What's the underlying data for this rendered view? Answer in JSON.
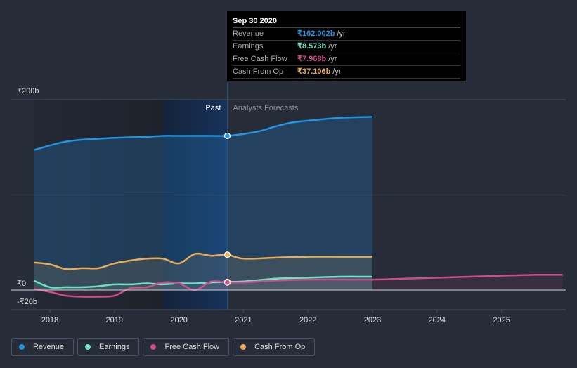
{
  "tooltip": {
    "date": "Sep 30 2020",
    "rows": [
      {
        "label": "Revenue",
        "value": "162.002b",
        "unit": "/yr",
        "color": "#2394df"
      },
      {
        "label": "Earnings",
        "value": "8.573b",
        "unit": "/yr",
        "color": "#6ee0c8"
      },
      {
        "label": "Free Cash Flow",
        "value": "7.968b",
        "unit": "/yr",
        "color": "#cb4d8c"
      },
      {
        "label": "Cash From Op",
        "value": "37.106b",
        "unit": "/yr",
        "color": "#e8ad5a"
      }
    ]
  },
  "legend": [
    {
      "label": "Revenue",
      "color": "#2394df"
    },
    {
      "label": "Earnings",
      "color": "#6ee0c8"
    },
    {
      "label": "Free Cash Flow",
      "color": "#cb4d8c"
    },
    {
      "label": "Cash From Op",
      "color": "#e8ad5a"
    }
  ],
  "chart_data": {
    "type": "line",
    "title": "",
    "xlabel": "",
    "ylabel": "",
    "currency_symbol": "₹",
    "y_ticks": [
      {
        "value": 200,
        "label": "₹200b"
      },
      {
        "value": 0,
        "label": "₹0"
      },
      {
        "value": -20,
        "label": "-₹20b"
      }
    ],
    "x_ticks": [
      "2018",
      "2019",
      "2020",
      "2021",
      "2022",
      "2023",
      "2024",
      "2025"
    ],
    "xlim": [
      2017.5,
      2025.95
    ],
    "ylim": [
      -20,
      200
    ],
    "grid": true,
    "past_label": "Past",
    "forecast_label": "Analysts Forecasts",
    "present_date": 2020.75,
    "highlight_range": [
      2019.75,
      2020.75
    ],
    "series": [
      {
        "name": "Revenue",
        "color": "#2394df",
        "x": [
          2017.75,
          2018.0,
          2018.25,
          2018.5,
          2018.75,
          2019.0,
          2019.5,
          2019.75,
          2020.0,
          2020.25,
          2020.5,
          2020.75,
          2021.0,
          2021.25,
          2021.5,
          2021.75,
          2022.0,
          2022.5,
          2023.0
        ],
        "y": [
          147,
          152,
          156,
          158,
          159,
          160,
          161,
          162,
          162,
          162,
          162,
          162,
          164,
          167,
          172,
          176,
          178,
          181,
          182
        ]
      },
      {
        "name": "Earnings",
        "color": "#6ee0c8",
        "x": [
          2017.75,
          2018.0,
          2018.25,
          2018.5,
          2018.75,
          2019.0,
          2019.25,
          2019.5,
          2019.75,
          2020.0,
          2020.25,
          2020.5,
          2020.75,
          2021.0,
          2021.5,
          2022.0,
          2022.5,
          2023.0
        ],
        "y": [
          10,
          3,
          3,
          3,
          4,
          6,
          6,
          7,
          6,
          7,
          7,
          8,
          8.6,
          9,
          12,
          13,
          14,
          14
        ]
      },
      {
        "name": "Free Cash Flow",
        "color": "#cb4d8c",
        "x": [
          2017.75,
          2018.0,
          2018.25,
          2018.5,
          2018.75,
          2019.0,
          2019.25,
          2019.5,
          2019.75,
          2020.0,
          2020.25,
          2020.5,
          2020.75,
          2021.0,
          2021.5,
          2022.0,
          2022.5,
          2023.0,
          2023.5,
          2024.0,
          2024.5,
          2025.0,
          2025.5,
          2025.95
        ],
        "y": [
          1,
          -2,
          -6,
          -7,
          -7,
          -6,
          2,
          3,
          8,
          7,
          0,
          9,
          8.0,
          8,
          10,
          11,
          11,
          11,
          12,
          13,
          14,
          15,
          16,
          16
        ]
      },
      {
        "name": "Cash From Op",
        "color": "#e8ad5a",
        "x": [
          2017.75,
          2018.0,
          2018.25,
          2018.5,
          2018.75,
          2019.0,
          2019.25,
          2019.5,
          2019.75,
          2020.0,
          2020.25,
          2020.5,
          2020.75,
          2021.0,
          2021.5,
          2022.0,
          2022.5,
          2023.0
        ],
        "y": [
          29,
          27,
          22,
          23,
          23,
          28,
          31,
          33,
          33,
          28,
          38,
          36,
          37.1,
          33,
          34,
          35,
          35,
          35
        ]
      }
    ]
  }
}
